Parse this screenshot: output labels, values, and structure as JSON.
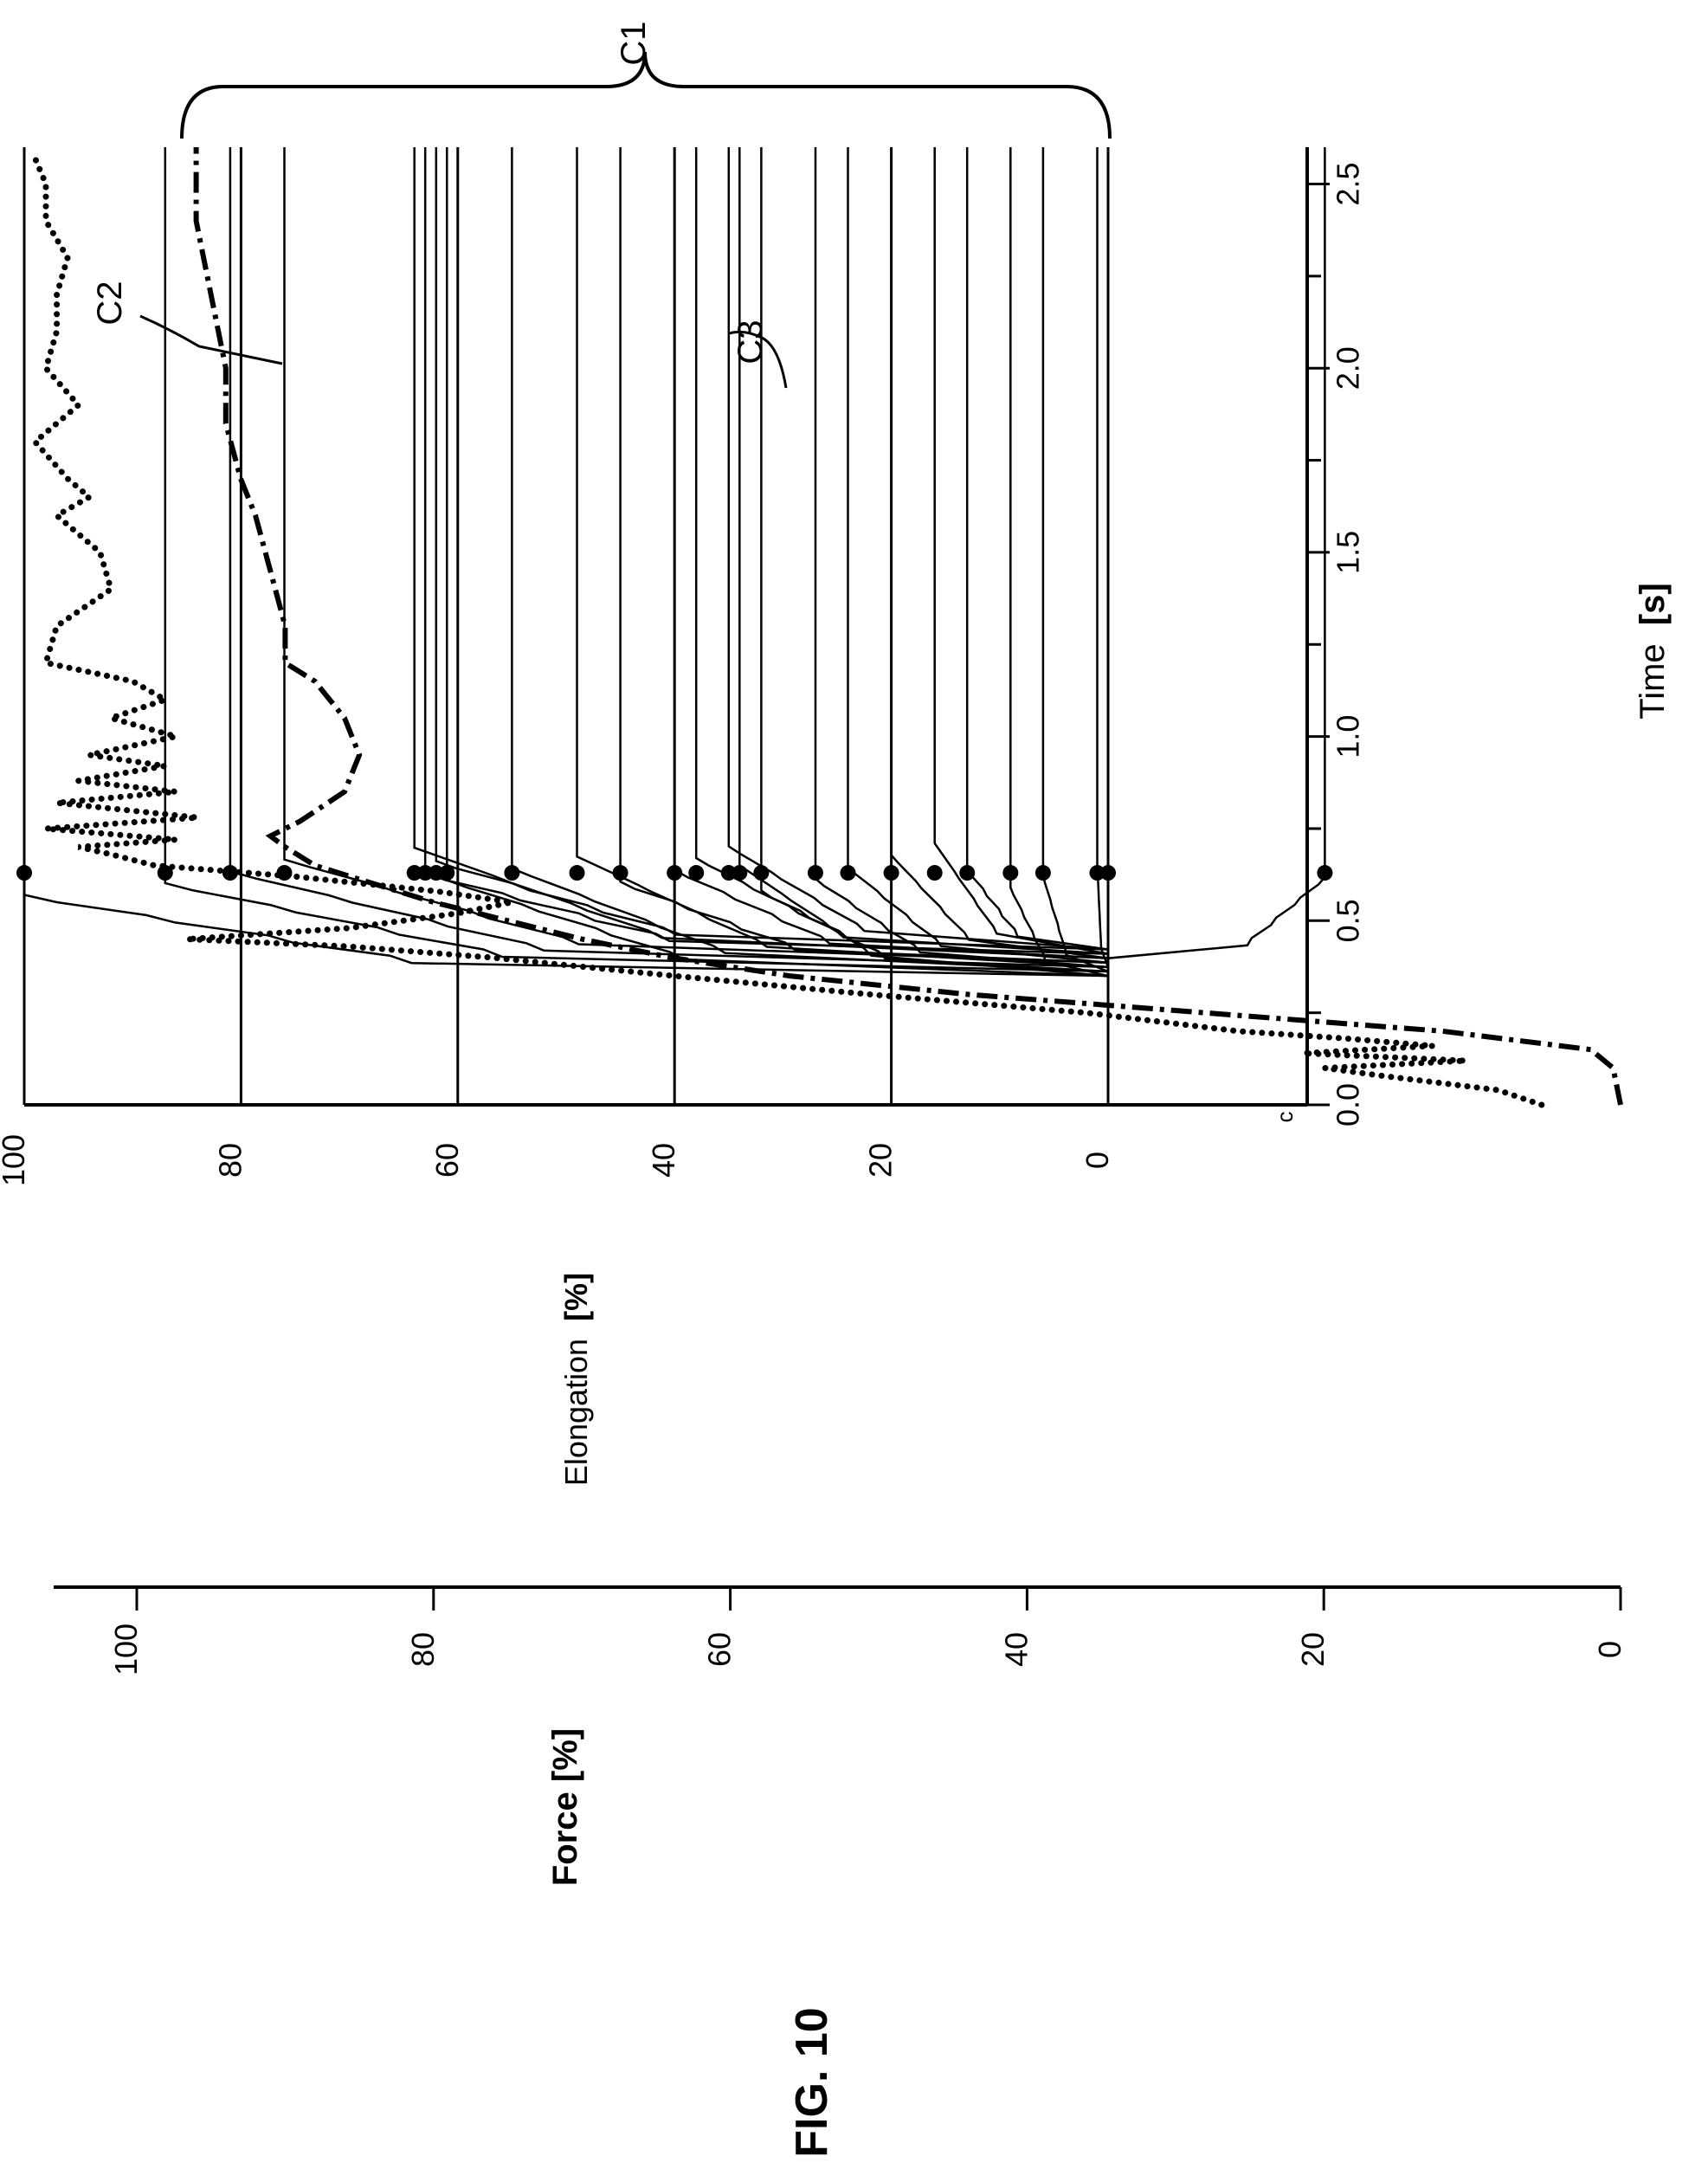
{
  "figure": {
    "label": "FIG. 10"
  },
  "chart_data": {
    "type": "line",
    "orientation": "rotated 90 degrees counter-clockwise",
    "xlabel": "Time",
    "xlabel_unit": "[s]",
    "xlim": [
      0,
      2.6
    ],
    "x_ticks": [
      "0.0",
      "0.5",
      "1.0",
      "1.5",
      "2.0",
      "2.5"
    ],
    "y_axes": [
      {
        "id": "elongation",
        "label": "Elongation",
        "unit": "[%]",
        "range": [
          -40,
          100
        ],
        "ticks": [
          "0",
          "20",
          "40",
          "60",
          "80",
          "100"
        ],
        "grid": true
      },
      {
        "id": "force",
        "label": "Force [%]",
        "range": [
          0,
          109
        ],
        "ticks": [
          "0",
          "20",
          "40",
          "60",
          "80",
          "100"
        ]
      }
    ],
    "annotations": [
      {
        "label": "C1",
        "kind": "brace",
        "spans": "elongation curve family"
      },
      {
        "label": "C2",
        "kind": "leader",
        "target": "dash-dot force curve"
      },
      {
        "label": "C3",
        "kind": "leader",
        "target": "dotted elongation curve"
      }
    ],
    "series": [
      {
        "name": "C2",
        "axis": "force",
        "style": "dash-dot",
        "points": [
          [
            0,
            0
          ],
          [
            0.1,
            0.5
          ],
          [
            0.15,
            2
          ],
          [
            0.2,
            12
          ],
          [
            0.25,
            28
          ],
          [
            0.3,
            44
          ],
          [
            0.35,
            56
          ],
          [
            0.4,
            64
          ],
          [
            0.45,
            70
          ],
          [
            0.5,
            75
          ],
          [
            0.55,
            80
          ],
          [
            0.6,
            84
          ],
          [
            0.65,
            88
          ],
          [
            0.7,
            90
          ],
          [
            0.73,
            91
          ],
          [
            0.77,
            89
          ],
          [
            0.85,
            86
          ],
          [
            0.95,
            85
          ],
          [
            1.05,
            86
          ],
          [
            1.15,
            88
          ],
          [
            1.2,
            90
          ],
          [
            1.3,
            90
          ],
          [
            1.45,
            91
          ],
          [
            1.6,
            92
          ],
          [
            1.7,
            93
          ],
          [
            1.85,
            94
          ],
          [
            2.0,
            94
          ],
          [
            2.2,
            95
          ],
          [
            2.4,
            96
          ],
          [
            2.6,
            96
          ]
        ]
      },
      {
        "name": "C3",
        "axis": "elongation",
        "style": "dotted",
        "points": [
          [
            0,
            -40
          ],
          [
            0.04,
            -36
          ],
          [
            0.08,
            -25
          ],
          [
            0.1,
            -20
          ],
          [
            0.12,
            -33
          ],
          [
            0.14,
            -18
          ],
          [
            0.16,
            -30
          ],
          [
            0.18,
            -22
          ],
          [
            0.2,
            -12
          ],
          [
            0.25,
            2
          ],
          [
            0.3,
            22
          ],
          [
            0.35,
            40
          ],
          [
            0.4,
            57
          ],
          [
            0.43,
            70
          ],
          [
            0.45,
            85
          ],
          [
            0.48,
            70
          ],
          [
            0.52,
            60
          ],
          [
            0.55,
            55
          ],
          [
            0.58,
            62
          ],
          [
            0.62,
            75
          ],
          [
            0.65,
            88
          ],
          [
            0.68,
            92
          ],
          [
            0.7,
            95
          ],
          [
            0.72,
            86
          ],
          [
            0.75,
            98
          ],
          [
            0.78,
            84
          ],
          [
            0.82,
            97
          ],
          [
            0.85,
            86
          ],
          [
            0.88,
            95
          ],
          [
            0.92,
            87
          ],
          [
            0.95,
            94
          ],
          [
            1.0,
            86
          ],
          [
            1.05,
            92
          ],
          [
            1.1,
            87
          ],
          [
            1.15,
            90
          ],
          [
            1.2,
            98
          ],
          [
            1.3,
            97
          ],
          [
            1.4,
            92
          ],
          [
            1.5,
            93
          ],
          [
            1.6,
            97
          ],
          [
            1.65,
            94
          ],
          [
            1.7,
            96
          ],
          [
            1.8,
            99
          ],
          [
            1.9,
            95
          ],
          [
            2.0,
            98
          ],
          [
            2.1,
            97
          ],
          [
            2.2,
            97
          ],
          [
            2.3,
            96
          ],
          [
            2.4,
            98
          ],
          [
            2.5,
            98
          ],
          [
            2.57,
            99
          ]
        ]
      }
    ],
    "c1_curves": {
      "axis": "elongation",
      "style": "solid step lines",
      "marker_time": 0.63,
      "plateau_levels": [
        100,
        87,
        81,
        76,
        64,
        63,
        62,
        61,
        55,
        49,
        45,
        40,
        38,
        35,
        34,
        32,
        27,
        24,
        20,
        16,
        13,
        9,
        6,
        1,
        0,
        -20
      ]
    }
  }
}
